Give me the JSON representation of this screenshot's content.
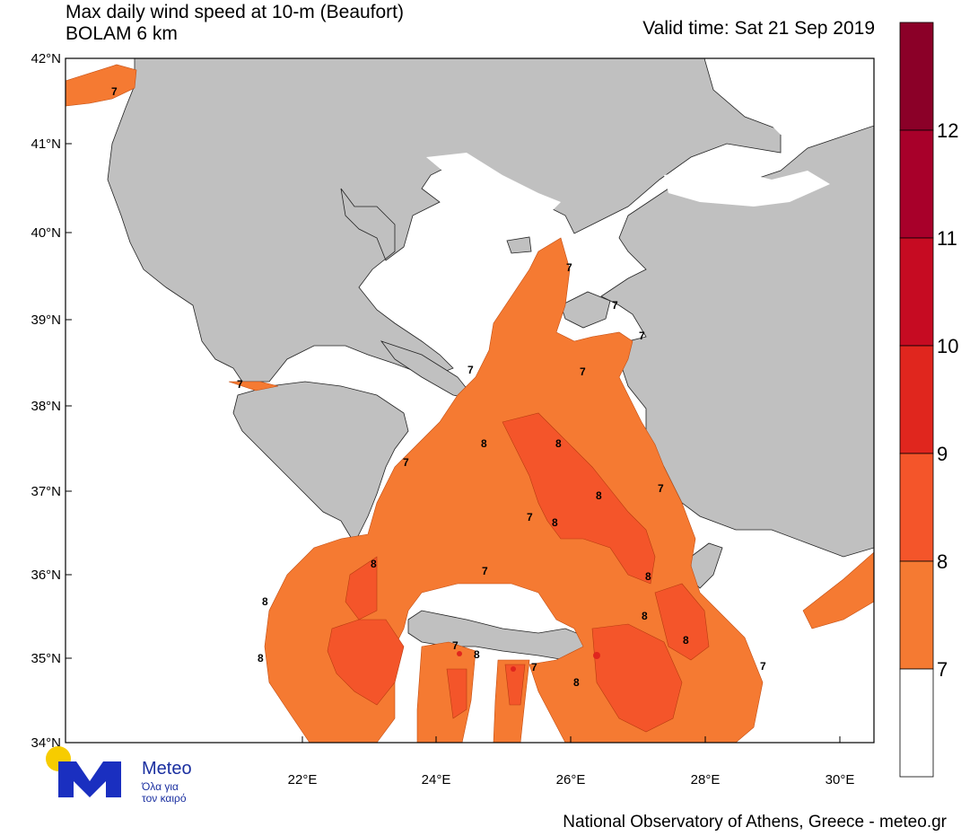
{
  "header": {
    "title": "Max daily wind speed at 10-m (Beaufort)",
    "subtitle": "BOLAM 6 km",
    "valid_time": "Valid time: Sat 21 Sep 2019"
  },
  "map": {
    "lat_labels": [
      "42°N",
      "41°N",
      "40°N",
      "39°N",
      "38°N",
      "37°N",
      "36°N",
      "35°N",
      "34°N"
    ],
    "lon_labels": [
      "22°E",
      "24°E",
      "26°E",
      "28°E",
      "30°E"
    ],
    "contour_labels": [
      "7",
      "7",
      "7",
      "7",
      "7",
      "7",
      "7",
      "7",
      "8",
      "8",
      "8",
      "8",
      "8",
      "8",
      "8",
      "8",
      "8",
      "8",
      "7",
      "7",
      "7",
      "7",
      "7",
      "7",
      "8",
      "8"
    ]
  },
  "colorbar": {
    "labels": [
      "12",
      "11",
      "10",
      "9",
      "8",
      "7"
    ],
    "colors": [
      "#8b0028",
      "#a8002a",
      "#c60b22",
      "#e0261e",
      "#f4552a",
      "#f57a32",
      "#ffffff"
    ]
  },
  "logo": {
    "name": "Meteo",
    "tagline_1": "Όλα για",
    "tagline_2": "τον καιρό"
  },
  "footer": "National Observatory of Athens, Greece - meteo.gr"
}
